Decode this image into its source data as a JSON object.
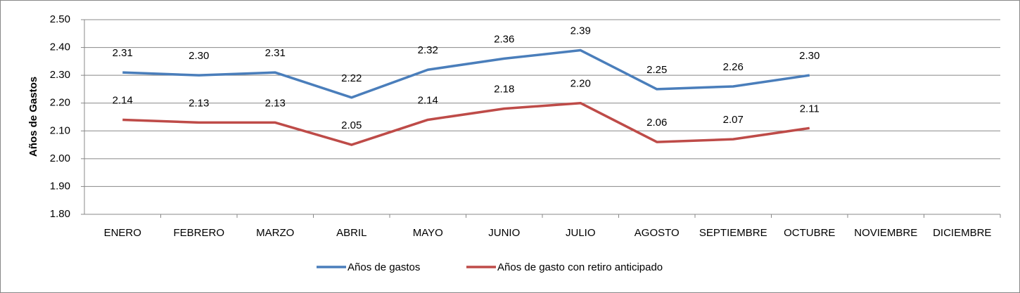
{
  "chart_data": {
    "type": "line",
    "y_label": "Años de Gastos",
    "categories": [
      "ENERO",
      "FEBRERO",
      "MARZO",
      "ABRIL",
      "MAYO",
      "JUNIO",
      "JULIO",
      "AGOSTO",
      "SEPTIEMBRE",
      "OCTUBRE",
      "NOVIEMBRE",
      "DICIEMBRE"
    ],
    "series": [
      {
        "name": "Años de gastos",
        "color": "#4a7ebb",
        "values": [
          2.31,
          2.3,
          2.31,
          2.22,
          2.32,
          2.36,
          2.39,
          2.25,
          2.26,
          2.3,
          null,
          null
        ],
        "value_labels": [
          "2.31",
          "2.30",
          "2.31",
          "2.22",
          "2.32",
          "2.36",
          "2.39",
          "2.25",
          "2.26",
          "2.30",
          null,
          null
        ]
      },
      {
        "name": "Años de gasto con retiro anticipado",
        "color": "#be4b48",
        "values": [
          2.14,
          2.13,
          2.13,
          2.05,
          2.14,
          2.18,
          2.2,
          2.06,
          2.07,
          2.11,
          null,
          null
        ],
        "value_labels": [
          "2.14",
          "2.13",
          "2.13",
          "2.05",
          "2.14",
          "2.18",
          "2.20",
          "2.06",
          "2.07",
          "2.11",
          null,
          null
        ]
      }
    ],
    "ylim": [
      1.8,
      2.5
    ],
    "yticks": [
      {
        "value": 1.8,
        "label": "1.80"
      },
      {
        "value": 1.9,
        "label": "1.90"
      },
      {
        "value": 2.0,
        "label": "2.00"
      },
      {
        "value": 2.1,
        "label": "2.10"
      },
      {
        "value": 2.2,
        "label": "2.20"
      },
      {
        "value": 2.3,
        "label": "2.30"
      },
      {
        "value": 2.4,
        "label": "2.40"
      },
      {
        "value": 2.5,
        "label": "2.50"
      }
    ],
    "grid": true,
    "legend": "bottom"
  }
}
